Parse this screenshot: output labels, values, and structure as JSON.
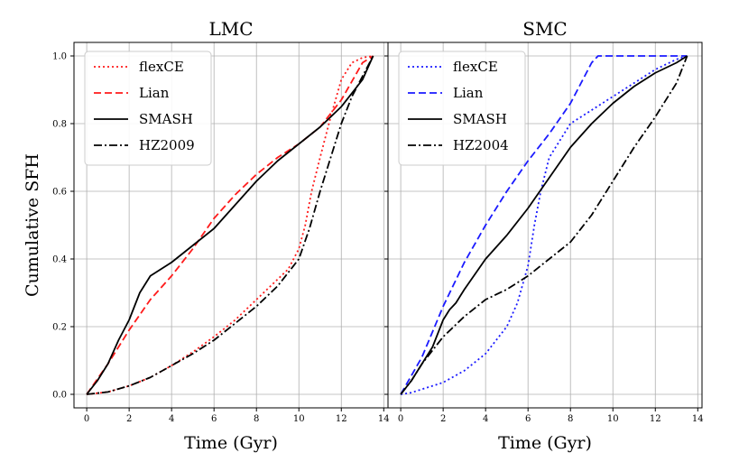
{
  "chart_data": {
    "type": "line",
    "ylabel": "Cumulative SFH",
    "panels": [
      {
        "title": "LMC",
        "xlabel": "Time (Gyr)",
        "xlim": [
          -0.6,
          14.2
        ],
        "ylim": [
          -0.04,
          1.04
        ],
        "xticks": [
          0,
          2,
          4,
          6,
          8,
          10,
          12,
          14
        ],
        "yticks": [
          0.0,
          0.2,
          0.4,
          0.6,
          0.8,
          1.0
        ],
        "grid": true,
        "legend_position": "top-left",
        "series": [
          {
            "name": "flexCE",
            "color": "#ff1a1a",
            "dash": "dotted",
            "x": [
              0,
              1,
              2,
              3,
              4,
              5,
              6,
              7,
              8,
              9,
              9.5,
              10,
              10.3,
              10.6,
              11,
              11.5,
              12,
              12.5,
              13,
              13.5
            ],
            "y": [
              0,
              0.007,
              0.025,
              0.05,
              0.085,
              0.125,
              0.17,
              0.22,
              0.28,
              0.34,
              0.37,
              0.43,
              0.5,
              0.6,
              0.7,
              0.82,
              0.93,
              0.98,
              0.995,
              1.0
            ]
          },
          {
            "name": "Lian",
            "color": "#ff1a1a",
            "dash": "dashed",
            "x": [
              0,
              1,
              2,
              3,
              4,
              5,
              6,
              7,
              8,
              9,
              10,
              11,
              12,
              13,
              13.5
            ],
            "y": [
              0,
              0.09,
              0.19,
              0.28,
              0.35,
              0.43,
              0.52,
              0.59,
              0.65,
              0.7,
              0.74,
              0.79,
              0.87,
              0.98,
              1.0
            ]
          },
          {
            "name": "SMASH",
            "color": "#000000",
            "dash": "solid",
            "x": [
              0,
              0.5,
              1,
              1.5,
              2,
              2.5,
              3,
              3.5,
              4,
              5,
              6,
              7,
              8,
              9,
              10,
              11,
              12,
              13,
              13.5
            ],
            "y": [
              0,
              0.04,
              0.09,
              0.16,
              0.22,
              0.3,
              0.35,
              0.37,
              0.39,
              0.44,
              0.49,
              0.56,
              0.63,
              0.69,
              0.74,
              0.79,
              0.85,
              0.93,
              1.0
            ]
          },
          {
            "name": "HZ2009",
            "color": "#000000",
            "dash": "dashdot",
            "x": [
              0,
              1,
              2,
              3,
              4,
              5,
              6,
              7,
              8,
              9,
              10,
              10.5,
              11,
              11.5,
              12,
              12.5,
              13,
              13.5
            ],
            "y": [
              0,
              0.007,
              0.025,
              0.05,
              0.085,
              0.12,
              0.16,
              0.21,
              0.26,
              0.32,
              0.4,
              0.49,
              0.6,
              0.7,
              0.8,
              0.88,
              0.94,
              1.0
            ]
          }
        ]
      },
      {
        "title": "SMC",
        "xlabel": "Time (Gyr)",
        "xlim": [
          -0.6,
          14.2
        ],
        "ylim": [
          -0.04,
          1.04
        ],
        "xticks": [
          0,
          2,
          4,
          6,
          8,
          10,
          12,
          14
        ],
        "yticks": [
          0.0,
          0.2,
          0.4,
          0.6,
          0.8,
          1.0
        ],
        "grid": true,
        "legend_position": "top-left",
        "series": [
          {
            "name": "flexCE",
            "color": "#1a1aff",
            "dash": "dotted",
            "x": [
              0,
              0.5,
              1,
              2,
              3,
              4,
              5,
              5.5,
              6,
              6.3,
              6.6,
              7,
              8,
              9,
              10,
              11,
              12,
              13,
              13.5
            ],
            "y": [
              0,
              0.005,
              0.015,
              0.035,
              0.07,
              0.12,
              0.2,
              0.27,
              0.38,
              0.5,
              0.6,
              0.7,
              0.8,
              0.84,
              0.88,
              0.92,
              0.96,
              0.99,
              1.0
            ]
          },
          {
            "name": "Lian",
            "color": "#1a1aff",
            "dash": "dashed",
            "x": [
              0,
              1,
              2,
              3,
              4,
              5,
              6,
              7,
              8,
              8.5,
              9,
              9.3,
              10,
              11,
              12,
              13,
              13.5
            ],
            "y": [
              0,
              0.11,
              0.26,
              0.39,
              0.5,
              0.6,
              0.69,
              0.77,
              0.86,
              0.92,
              0.98,
              1.0,
              1.0,
              1.0,
              1.0,
              1.0,
              1.0
            ]
          },
          {
            "name": "SMASH",
            "color": "#000000",
            "dash": "solid",
            "x": [
              0,
              0.5,
              1,
              1.5,
              2,
              2.3,
              2.6,
              3,
              4,
              5,
              6,
              7,
              8,
              9,
              10,
              11,
              12,
              13,
              13.5
            ],
            "y": [
              0,
              0.04,
              0.09,
              0.14,
              0.22,
              0.25,
              0.27,
              0.31,
              0.4,
              0.47,
              0.55,
              0.64,
              0.73,
              0.8,
              0.86,
              0.91,
              0.95,
              0.98,
              1.0
            ]
          },
          {
            "name": "HZ2004",
            "color": "#000000",
            "dash": "dashdot",
            "x": [
              0,
              0.5,
              1,
              2,
              3,
              4,
              5,
              6,
              7,
              8,
              9,
              10,
              11,
              12,
              13,
              13.5
            ],
            "y": [
              0,
              0.04,
              0.09,
              0.17,
              0.23,
              0.28,
              0.31,
              0.35,
              0.4,
              0.45,
              0.53,
              0.63,
              0.73,
              0.82,
              0.92,
              1.0
            ]
          }
        ]
      }
    ]
  }
}
